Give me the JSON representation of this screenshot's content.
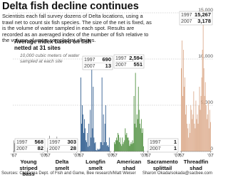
{
  "chart_data": {
    "type": "bar",
    "title": "Delta fish decline continues",
    "description": "Scientists each fall survey dozens of Delta locations, using a trawl net to count six fish species. The size of the net is fixed, as is the volume of water sampled in each spot. Results are recorded as an averaged index of the number of fish relative to the volume of water sampled at all sites.",
    "subtitle": "Average index based on fish netted at 31 sites",
    "note": "10,000 cubic meters of water sampled at each site",
    "categories": [
      "'67",
      null,
      null,
      null,
      null,
      null,
      null,
      null,
      null,
      null,
      null,
      null,
      null,
      null,
      null,
      null,
      null,
      null,
      null,
      null,
      null,
      null,
      null,
      null,
      null,
      null,
      null,
      null,
      null,
      null,
      null,
      null,
      null,
      null,
      null,
      null,
      null,
      null,
      null,
      null,
      "'07"
    ],
    "callout_years": [
      "1997",
      "2007"
    ],
    "series": [
      {
        "name": "Young striped bass",
        "color": "#8c8c8c",
        "values": [
          1200,
          900,
          1300,
          1000,
          800,
          1100,
          1400,
          900,
          700,
          600,
          800,
          1000,
          500,
          600,
          400,
          700,
          300,
          400,
          600,
          700,
          450,
          350,
          300,
          250,
          500,
          400,
          350,
          900,
          500,
          450,
          568,
          600,
          400,
          300,
          250,
          200,
          150,
          100,
          120,
          90,
          82
        ],
        "callout_values": [
          568,
          82
        ]
      },
      {
        "name": "Delta smelt",
        "color": "#8c8c8c",
        "values": [
          400,
          1100,
          1000,
          1700,
          900,
          1300,
          1200,
          600,
          1000,
          500,
          400,
          600,
          1000,
          1600,
          400,
          300,
          100,
          200,
          100,
          200,
          300,
          350,
          200,
          350,
          200,
          100,
          150,
          100,
          1000,
          900,
          303,
          400,
          850,
          750,
          600,
          150,
          200,
          70,
          30,
          40,
          28
        ],
        "callout_values": [
          303,
          28
        ]
      },
      {
        "name": "Longfin smelt",
        "color": "#2d5b8e",
        "values": [
          8000,
          3000,
          5000,
          4000,
          2000,
          3500,
          2500,
          1200,
          1000,
          2000,
          500,
          3000,
          600,
          4500,
          1500,
          9000,
          2500,
          7000,
          1500,
          900,
          1000,
          150,
          100,
          300,
          200,
          200,
          300,
          1000,
          1000,
          8000,
          690,
          4000,
          1000,
          3000,
          5000,
          1000,
          600,
          700,
          500,
          1500,
          13
        ],
        "callout_values": [
          690,
          13
        ]
      },
      {
        "name": "American shad",
        "color": "#4e8f3e",
        "values": [
          1000,
          800,
          1200,
          1500,
          1200,
          2000,
          1800,
          1000,
          1500,
          800,
          600,
          1500,
          800,
          1000,
          1200,
          2500,
          1800,
          2000,
          1500,
          1500,
          1200,
          600,
          800,
          1000,
          800,
          1200,
          900,
          6000,
          3000,
          8500,
          2594,
          4000,
          3500,
          7000,
          4500,
          3000,
          2500,
          3500,
          2000,
          2500,
          551
        ],
        "callout_values": [
          2594,
          551
        ],
        "callout_value_labels": [
          "2,594",
          "551"
        ]
      },
      {
        "name": "Sacramento splittail",
        "color": "#8c8c8c",
        "values": [
          50,
          30,
          80,
          40,
          20,
          60,
          100,
          40,
          30,
          20,
          80,
          40,
          60,
          90,
          150,
          40,
          30,
          20,
          60,
          50,
          30,
          10,
          20,
          15,
          10,
          20,
          30,
          200,
          60,
          70,
          1,
          5,
          100,
          30,
          20,
          10,
          5,
          10,
          20,
          5,
          1
        ],
        "callout_values": [
          1,
          1
        ]
      },
      {
        "name": "Threadfin shad",
        "color": "#dcab8c",
        "values": [
          9000,
          12000,
          6000,
          11000,
          7000,
          8000,
          4000,
          5000,
          3000,
          2500,
          1500,
          3000,
          2000,
          5000,
          4500,
          3500,
          4000,
          6500,
          3000,
          2500,
          5500,
          3500,
          4000,
          3000,
          5000,
          7000,
          4500,
          6000,
          8000,
          11000,
          15267,
          9000,
          6000,
          7500,
          5000,
          3500,
          4000,
          5500,
          2500,
          4500,
          3178
        ],
        "callout_values": [
          15267,
          3178
        ],
        "callout_value_labels": [
          "15,267",
          "3,178"
        ]
      }
    ],
    "ylim": [
      0,
      15000
    ],
    "yticks": [
      0,
      {
        "value": 5000,
        "label": "5,000"
      },
      {
        "value": 10000,
        "label": "10,000"
      },
      {
        "value": 15000,
        "label": "15,000"
      }
    ],
    "grid": true,
    "source": "Sources: California Dept. of Fish and Game, Bee research/Matt Weiser",
    "credit": "Sharon Okada/sokada@sacbee.com"
  }
}
